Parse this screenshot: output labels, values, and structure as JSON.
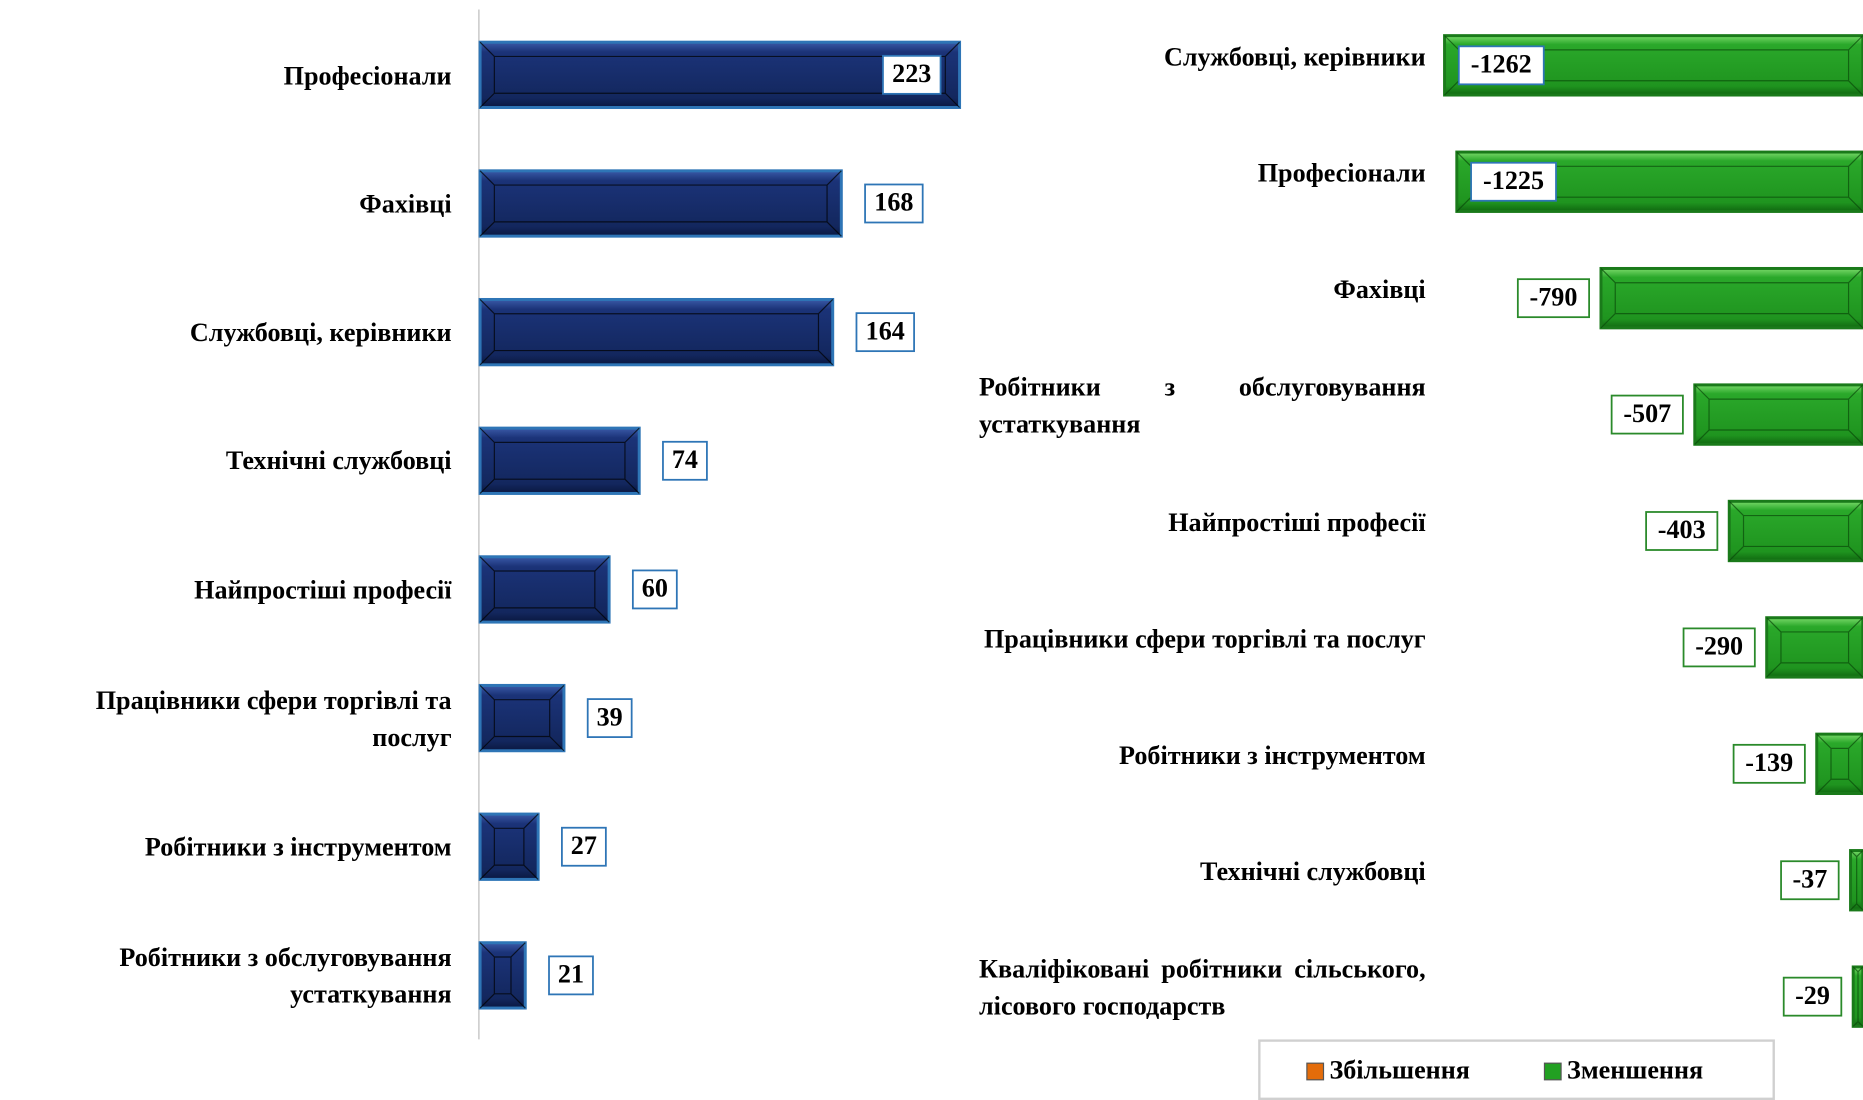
{
  "chart_data": [
    {
      "type": "bar",
      "categories": [
        "Професіонали",
        "Фахівці",
        "Службовці, керівники",
        "Технічні службовці",
        "Найпростіші професії",
        "Працівники сфери торгівлі та послуг",
        "Робітники з інструментом",
        "Робітники з обслуговування устаткування"
      ],
      "values": [
        223,
        168,
        164,
        74,
        60,
        39,
        27,
        21
      ],
      "color": "#1b3378",
      "xlim": [
        0,
        250
      ]
    },
    {
      "type": "bar",
      "categories": [
        "Службовці, керівники",
        "Професіонали",
        "Фахівці",
        "Робітники з обслуговування устаткування",
        "Найпростіші професії",
        "Працівники сфери торгівлі та послуг",
        "Робітники з інструментом",
        "Технічні службовці",
        "Кваліфіковані робітники сільського, лісового господарств"
      ],
      "series": [
        {
          "name": "Збільшення",
          "color": "#e46c0a",
          "values": [
            null,
            null,
            null,
            null,
            null,
            null,
            null,
            null,
            null
          ]
        },
        {
          "name": "Зменшення",
          "color": "#22a022",
          "values": [
            -1262,
            -1225,
            -790,
            -507,
            -403,
            -290,
            -139,
            -37,
            -29
          ]
        }
      ],
      "xlim": [
        -1400,
        0
      ],
      "legend": "bottom"
    }
  ]
}
